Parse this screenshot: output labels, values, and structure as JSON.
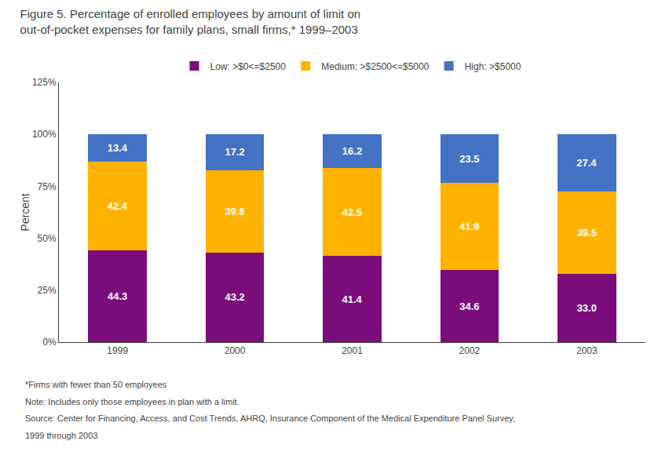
{
  "chart_data": {
    "type": "bar",
    "stacked": true,
    "title": "Figure 5. Percentage of enrolled employees by amount of limit on\nout-of-pocket expenses for family plans, small firms,* 1999–2003",
    "ylabel": "Percent",
    "categories": [
      "1999",
      "2000",
      "2001",
      "2002",
      "2003"
    ],
    "series": [
      {
        "name": "Low: >$0<=$2500",
        "color": "#7B0D7B",
        "values": [
          44.3,
          43.2,
          41.4,
          34.6,
          33.0
        ],
        "value_labels": [
          "44.3",
          "43.2",
          "41.4",
          "34.6",
          "33.0"
        ]
      },
      {
        "name": "Medium: >$2500<=$5000",
        "color": "#FFB300",
        "values": [
          42.4,
          39.6,
          42.5,
          41.9,
          39.5
        ]
      },
      {
        "name": "High: >$5000",
        "color": "#4472C4",
        "values": [
          13.4,
          17.2,
          16.2,
          23.5,
          27.4
        ]
      }
    ],
    "ylim": [
      0,
      125
    ],
    "yticks": [
      {
        "value": 0,
        "label": "0%"
      },
      {
        "value": 25,
        "label": "25%"
      },
      {
        "value": 50,
        "label": "50%"
      },
      {
        "value": 75,
        "label": "75%"
      },
      {
        "value": 100,
        "label": "100%"
      },
      {
        "value": 125,
        "label": "125%"
      }
    ],
    "grid": false,
    "legend": "top",
    "data_labels": true,
    "annotations": [
      "*Firms with fewer than 50 employees",
      "Note: Includes only those employees in plan with a limit.",
      "Source: Center for Financing, Access, and Cost Trends, AHRQ, Insurance Component of the Medical Expenditure Panel Survey,",
      "1999 through 2003"
    ]
  }
}
